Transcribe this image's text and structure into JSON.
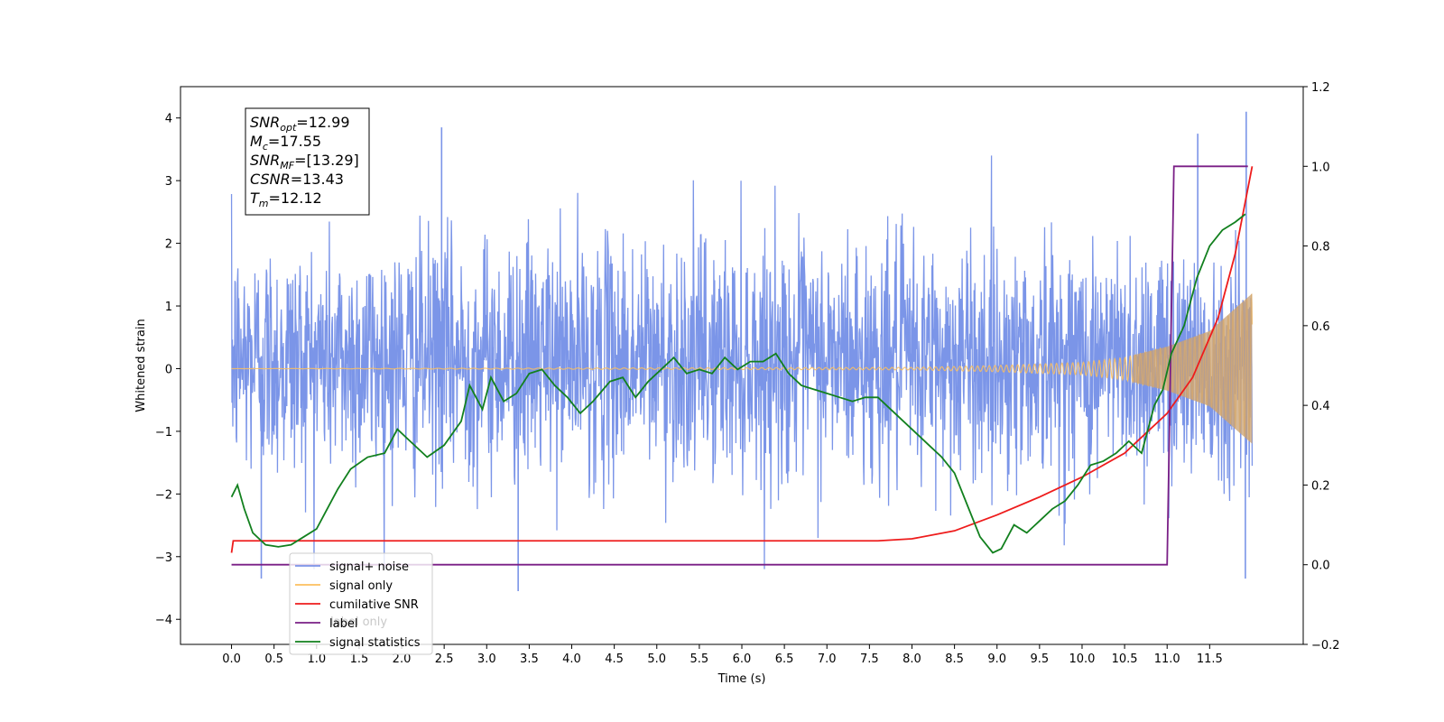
{
  "chart_data": {
    "type": "line",
    "xlabel": "Time (s)",
    "ylabel": "Whitened strain",
    "xlim": [
      -0.6,
      12.6
    ],
    "ylim_left": [
      -4.4,
      4.5
    ],
    "ylim_right": [
      -0.2,
      1.2
    ],
    "x_ticks": [
      0.0,
      0.5,
      1.0,
      1.5,
      2.0,
      2.5,
      3.0,
      3.5,
      4.0,
      4.5,
      5.0,
      5.5,
      6.0,
      6.5,
      7.0,
      7.5,
      8.0,
      8.5,
      9.0,
      9.5,
      10.0,
      10.5,
      11.0,
      11.5
    ],
    "x_tick_labels": [
      "0.0",
      "0.5",
      "1.0",
      "1.5",
      "2.0",
      "2.5",
      "3.0",
      "3.5",
      "4.0",
      "4.5",
      "5.0",
      "5.5",
      "6.0",
      "6.5",
      "7.0",
      "7.5",
      "8.0",
      "8.5",
      "9.0",
      "9.5",
      "10.0",
      "10.5",
      "11.0",
      "11.5"
    ],
    "y_left_ticks": [
      -4,
      -3,
      -2,
      -1,
      0,
      1,
      2,
      3,
      4
    ],
    "y_left_tick_labels": [
      "−4",
      "−3",
      "−2",
      "−1",
      "0",
      "1",
      "2",
      "3",
      "4"
    ],
    "y_right_ticks": [
      -0.2,
      0.0,
      0.2,
      0.4,
      0.6,
      0.8,
      1.0,
      1.2
    ],
    "y_right_tick_labels": [
      "−0.2",
      "0.0",
      "0.2",
      "0.4",
      "0.6",
      "0.8",
      "1.0",
      "1.2"
    ],
    "annotation": {
      "lines": [
        {
          "base": "SNR",
          "sub": "opt",
          "value": "=12.99"
        },
        {
          "base": "M",
          "sub": "c",
          "value": "=17.55"
        },
        {
          "base": "SNR",
          "sub": "MF",
          "value": "=[13.29]"
        },
        {
          "base": "CSNR",
          "sub": "",
          "value": "=13.43"
        },
        {
          "base": "T",
          "sub": "m",
          "value": "=12.12"
        }
      ]
    },
    "legend": {
      "placement": "lower-left",
      "entries": [
        {
          "label": "signal+ noise",
          "color": "#7b95e8"
        },
        {
          "label": "signal only",
          "color": "#fbbf5e"
        },
        {
          "label": "cumilative SNR",
          "color": "#ee1c1c"
        },
        {
          "label": "label",
          "color": "#7a1f86"
        },
        {
          "label": "signal statistics",
          "color": "#12801e"
        }
      ],
      "occluded_text": "label only"
    },
    "series": [
      {
        "name": "signal+ noise",
        "axis": "left",
        "color": "#7b95e8",
        "description_of_shape": "dense noise",
        "x_range": [
          0.0,
          12.0
        ],
        "amplitude_envelope": 2.3,
        "notable_peaks": [
          {
            "x": 2.47,
            "y": 3.85
          },
          {
            "x": 11.93,
            "y": 4.1
          },
          {
            "x": 11.36,
            "y": 3.75
          },
          {
            "x": 3.37,
            "y": -3.55
          },
          {
            "x": 11.92,
            "y": -3.35
          },
          {
            "x": 0.35,
            "y": -3.35
          }
        ]
      },
      {
        "name": "signal only",
        "axis": "left",
        "color": "#fbbf5e",
        "x_range": [
          0.0,
          12.0
        ],
        "envelope": [
          {
            "x": 0.0,
            "amp": 0.0
          },
          {
            "x": 8.0,
            "amp": 0.02
          },
          {
            "x": 9.0,
            "amp": 0.05
          },
          {
            "x": 10.0,
            "amp": 0.1
          },
          {
            "x": 10.5,
            "amp": 0.18
          },
          {
            "x": 11.0,
            "amp": 0.35
          },
          {
            "x": 11.5,
            "amp": 0.6
          },
          {
            "x": 12.0,
            "amp": 1.2
          }
        ]
      },
      {
        "name": "cumilative SNR",
        "axis": "right",
        "color": "#ee1c1c",
        "x": [
          0.0,
          0.02,
          1.0,
          3.0,
          5.0,
          7.0,
          7.6,
          8.0,
          8.5,
          9.0,
          9.5,
          10.0,
          10.5,
          11.0,
          11.3,
          11.6,
          11.8,
          12.0
        ],
        "y": [
          0.03,
          0.06,
          0.06,
          0.06,
          0.06,
          0.06,
          0.06,
          0.065,
          0.085,
          0.125,
          0.17,
          0.22,
          0.28,
          0.38,
          0.47,
          0.62,
          0.78,
          1.0
        ]
      },
      {
        "name": "label",
        "axis": "right",
        "color": "#7a1f86",
        "x": [
          0.0,
          11.0,
          11.0,
          11.08,
          11.95
        ],
        "y": [
          0.0,
          0.0,
          0.0,
          1.0,
          1.0
        ]
      },
      {
        "name": "signal statistics",
        "axis": "right",
        "color": "#12801e",
        "x": [
          0.0,
          0.07,
          0.15,
          0.25,
          0.4,
          0.55,
          0.7,
          0.85,
          1.0,
          1.1,
          1.25,
          1.4,
          1.6,
          1.8,
          1.95,
          2.1,
          2.3,
          2.5,
          2.7,
          2.8,
          2.95,
          3.05,
          3.2,
          3.35,
          3.5,
          3.65,
          3.8,
          3.95,
          4.1,
          4.25,
          4.45,
          4.6,
          4.75,
          4.9,
          5.05,
          5.2,
          5.35,
          5.5,
          5.65,
          5.8,
          5.95,
          6.1,
          6.25,
          6.4,
          6.55,
          6.7,
          6.85,
          7.0,
          7.15,
          7.3,
          7.45,
          7.6,
          7.75,
          7.9,
          8.05,
          8.2,
          8.35,
          8.5,
          8.65,
          8.8,
          8.95,
          9.05,
          9.2,
          9.35,
          9.5,
          9.65,
          9.8,
          9.95,
          10.1,
          10.25,
          10.4,
          10.55,
          10.7,
          10.85,
          10.95,
          11.05,
          11.2,
          11.35,
          11.5,
          11.65,
          11.8,
          11.92
        ],
        "y": [
          0.17,
          0.2,
          0.14,
          0.08,
          0.05,
          0.045,
          0.05,
          0.07,
          0.09,
          0.13,
          0.19,
          0.24,
          0.27,
          0.28,
          0.34,
          0.31,
          0.27,
          0.3,
          0.36,
          0.45,
          0.39,
          0.47,
          0.41,
          0.43,
          0.48,
          0.49,
          0.45,
          0.42,
          0.38,
          0.41,
          0.46,
          0.47,
          0.42,
          0.46,
          0.49,
          0.52,
          0.48,
          0.49,
          0.48,
          0.52,
          0.49,
          0.51,
          0.51,
          0.53,
          0.48,
          0.45,
          0.44,
          0.43,
          0.42,
          0.41,
          0.42,
          0.42,
          0.39,
          0.36,
          0.33,
          0.3,
          0.27,
          0.23,
          0.15,
          0.07,
          0.03,
          0.04,
          0.1,
          0.08,
          0.11,
          0.14,
          0.16,
          0.2,
          0.25,
          0.26,
          0.28,
          0.31,
          0.28,
          0.4,
          0.44,
          0.53,
          0.6,
          0.72,
          0.8,
          0.84,
          0.86,
          0.88
        ]
      }
    ]
  }
}
